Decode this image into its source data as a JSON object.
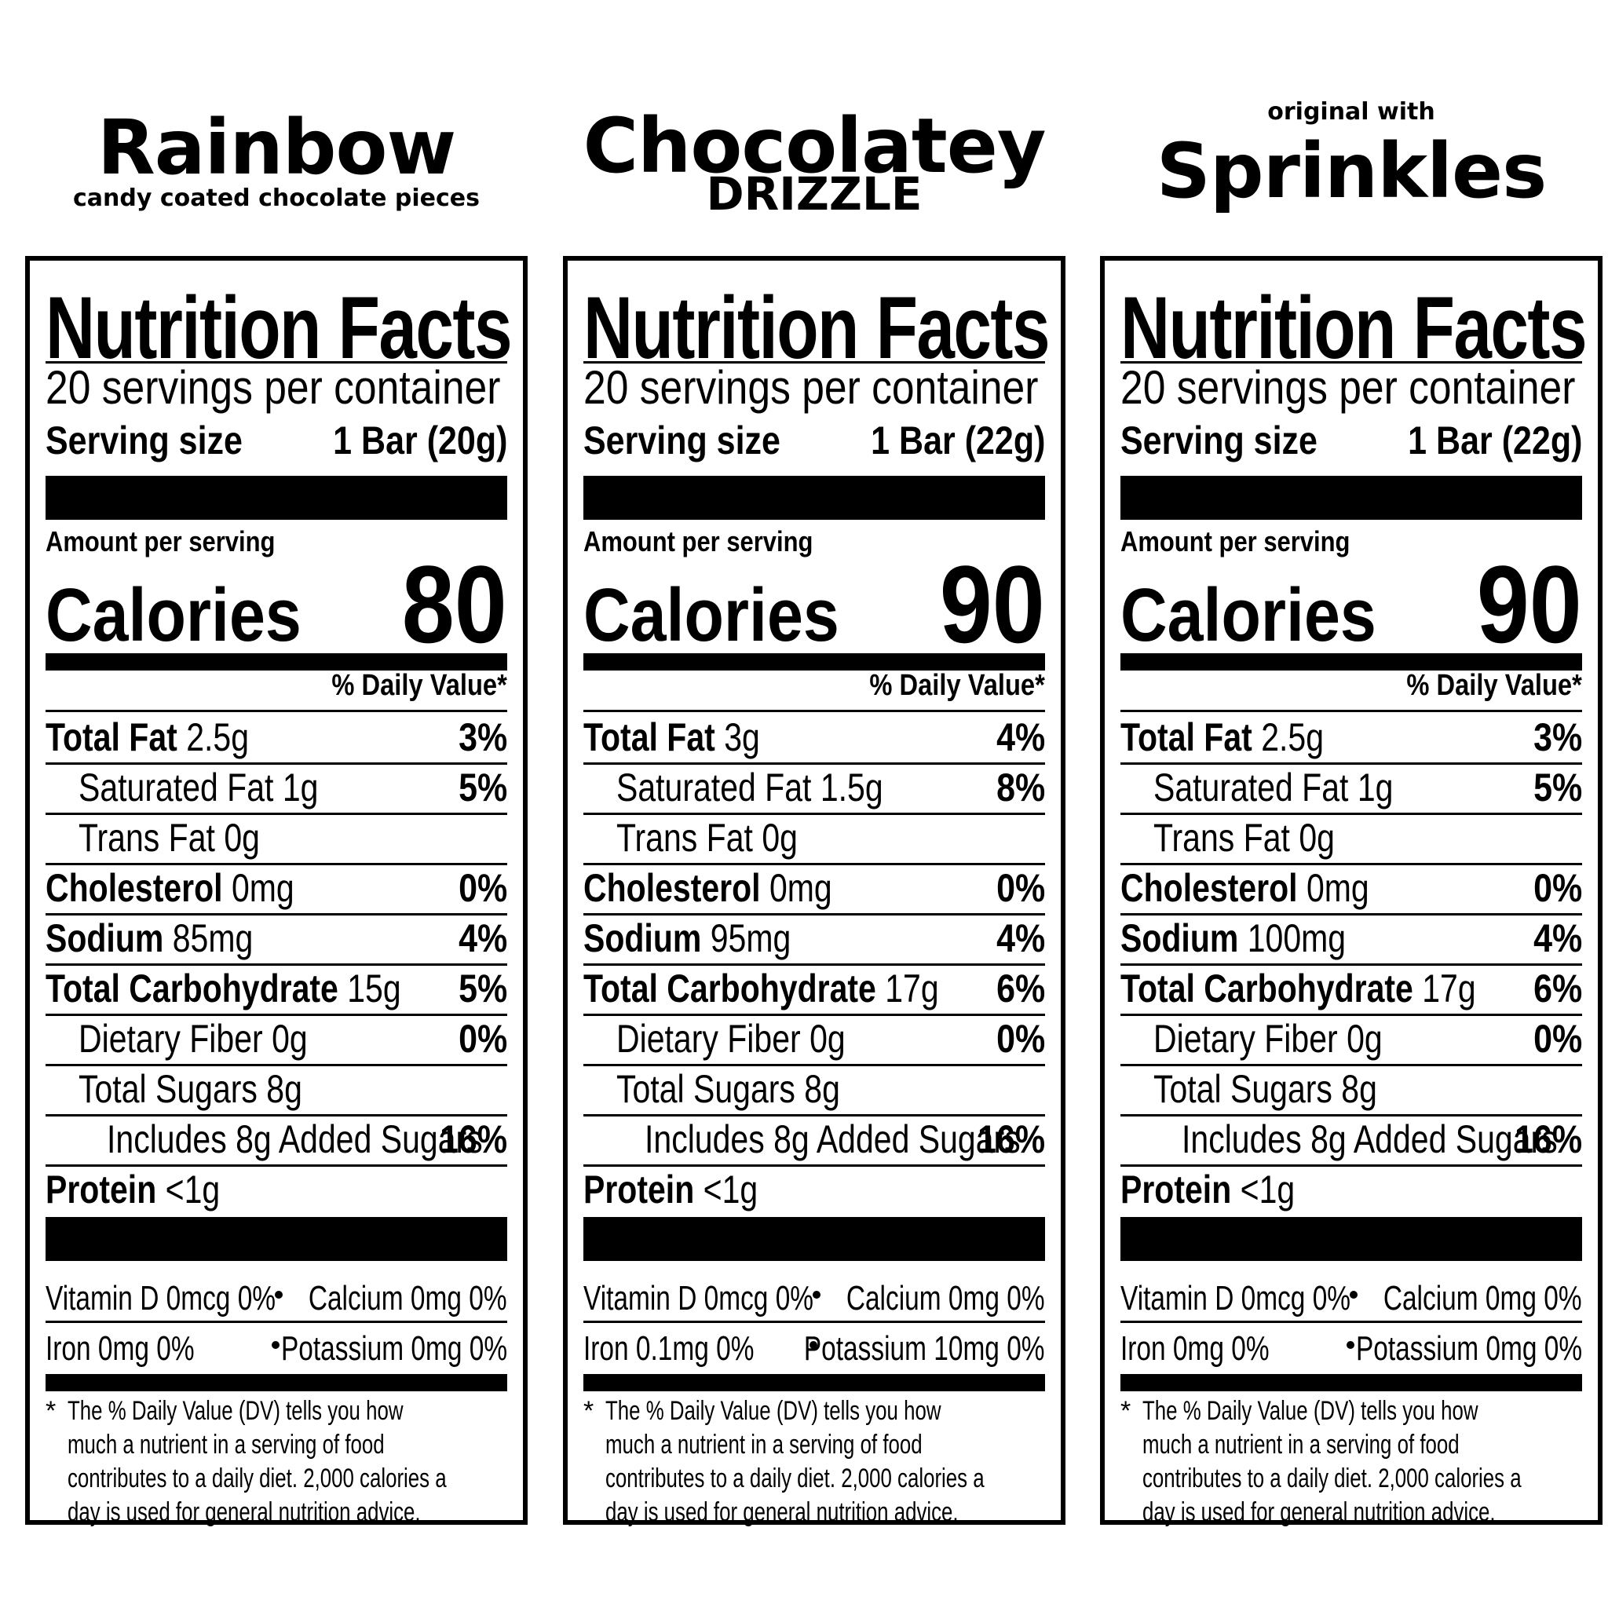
{
  "products": [
    {
      "heading_main": "Rainbow",
      "heading_sub": "candy coated chocolate pieces",
      "title": "Nutrition Facts",
      "servings": "20 servings per container",
      "serving_size_label": "Serving size",
      "serving_size_value": "1 Bar (20g)",
      "amount_label": "Amount per serving",
      "calories_label": "Calories",
      "calories": "80",
      "dv_header": "% Daily Value*",
      "nutrients": [
        {
          "name": "Total Fat",
          "amount": "2.5g",
          "dv": "3%"
        },
        {
          "name": "Saturated Fat",
          "amount": "1g",
          "dv": "5%"
        },
        {
          "name": "Trans Fat",
          "amount": "0g",
          "dv": ""
        },
        {
          "name": "Cholesterol",
          "amount": "0mg",
          "dv": "0%"
        },
        {
          "name": "Sodium",
          "amount": "85mg",
          "dv": "4%"
        },
        {
          "name": "Total Carbohydrate",
          "amount": "15g",
          "dv": "5%"
        },
        {
          "name": "Dietary Fiber",
          "amount": "0g",
          "dv": "0%"
        },
        {
          "name": "Total Sugars",
          "amount": "8g",
          "dv": ""
        },
        {
          "name": "Includes 8g Added Sugars",
          "amount": "",
          "dv": "16%"
        },
        {
          "name": "Protein",
          "amount": "<1g",
          "dv": ""
        }
      ],
      "vitamins": [
        {
          "left": "Vitamin D 0mcg 0%",
          "right": "Calcium 0mg 0%"
        },
        {
          "left": "Iron 0mg 0%",
          "right": "Potassium 0mg 0%"
        }
      ],
      "footnote": "The % Daily Value (DV) tells you how much a nutrient in a serving of food contributes to a daily diet. 2,000 calories a day is used for general nutrition advice."
    },
    {
      "heading_main": "Chocolatey",
      "heading_sub": "DRIZZLE",
      "title": "Nutrition Facts",
      "servings": "20 servings per container",
      "serving_size_label": "Serving size",
      "serving_size_value": "1 Bar (22g)",
      "amount_label": "Amount per serving",
      "calories_label": "Calories",
      "calories": "90",
      "dv_header": "% Daily Value*",
      "nutrients": [
        {
          "name": "Total Fat",
          "amount": "3g",
          "dv": "4%"
        },
        {
          "name": "Saturated Fat",
          "amount": "1.5g",
          "dv": "8%"
        },
        {
          "name": "Trans Fat",
          "amount": "0g",
          "dv": ""
        },
        {
          "name": "Cholesterol",
          "amount": "0mg",
          "dv": "0%"
        },
        {
          "name": "Sodium",
          "amount": "95mg",
          "dv": "4%"
        },
        {
          "name": "Total Carbohydrate",
          "amount": "17g",
          "dv": "6%"
        },
        {
          "name": "Dietary Fiber",
          "amount": "0g",
          "dv": "0%"
        },
        {
          "name": "Total Sugars",
          "amount": "8g",
          "dv": ""
        },
        {
          "name": "Includes 8g Added Sugars",
          "amount": "",
          "dv": "16%"
        },
        {
          "name": "Protein",
          "amount": "<1g",
          "dv": ""
        }
      ],
      "vitamins": [
        {
          "left": "Vitamin D 0mcg 0%",
          "right": "Calcium 0mg 0%"
        },
        {
          "left": "Iron 0.1mg 0%",
          "right": "Potassium 10mg 0%"
        }
      ],
      "footnote": "The % Daily Value (DV) tells you how much a nutrient in a serving of food contributes to a daily diet. 2,000 calories a day is used for general nutrition advice."
    },
    {
      "heading_main": "Sprinkles",
      "heading_sub": "original with",
      "title": "Nutrition Facts",
      "servings": "20 servings per container",
      "serving_size_label": "Serving size",
      "serving_size_value": "1 Bar (22g)",
      "amount_label": "Amount per serving",
      "calories_label": "Calories",
      "calories": "90",
      "dv_header": "% Daily Value*",
      "nutrients": [
        {
          "name": "Total Fat",
          "amount": "2.5g",
          "dv": "3%"
        },
        {
          "name": "Saturated Fat",
          "amount": "1g",
          "dv": "5%"
        },
        {
          "name": "Trans Fat",
          "amount": "0g",
          "dv": ""
        },
        {
          "name": "Cholesterol",
          "amount": "0mg",
          "dv": "0%"
        },
        {
          "name": "Sodium",
          "amount": "100mg",
          "dv": "4%"
        },
        {
          "name": "Total Carbohydrate",
          "amount": "17g",
          "dv": "6%"
        },
        {
          "name": "Dietary Fiber",
          "amount": "0g",
          "dv": "0%"
        },
        {
          "name": "Total Sugars",
          "amount": "8g",
          "dv": ""
        },
        {
          "name": "Includes 8g Added Sugars",
          "amount": "",
          "dv": "16%"
        },
        {
          "name": "Protein",
          "amount": "<1g",
          "dv": ""
        }
      ],
      "vitamins": [
        {
          "left": "Vitamin D 0mcg 0%",
          "right": "Calcium 0mg 0%"
        },
        {
          "left": "Iron 0mg 0%",
          "right": "Potassium 0mg 0%"
        }
      ],
      "footnote": "The % Daily Value (DV) tells you how much a nutrient in a serving of food contributes to a daily diet. 2,000 calories a day is used for general nutrition advice."
    }
  ]
}
